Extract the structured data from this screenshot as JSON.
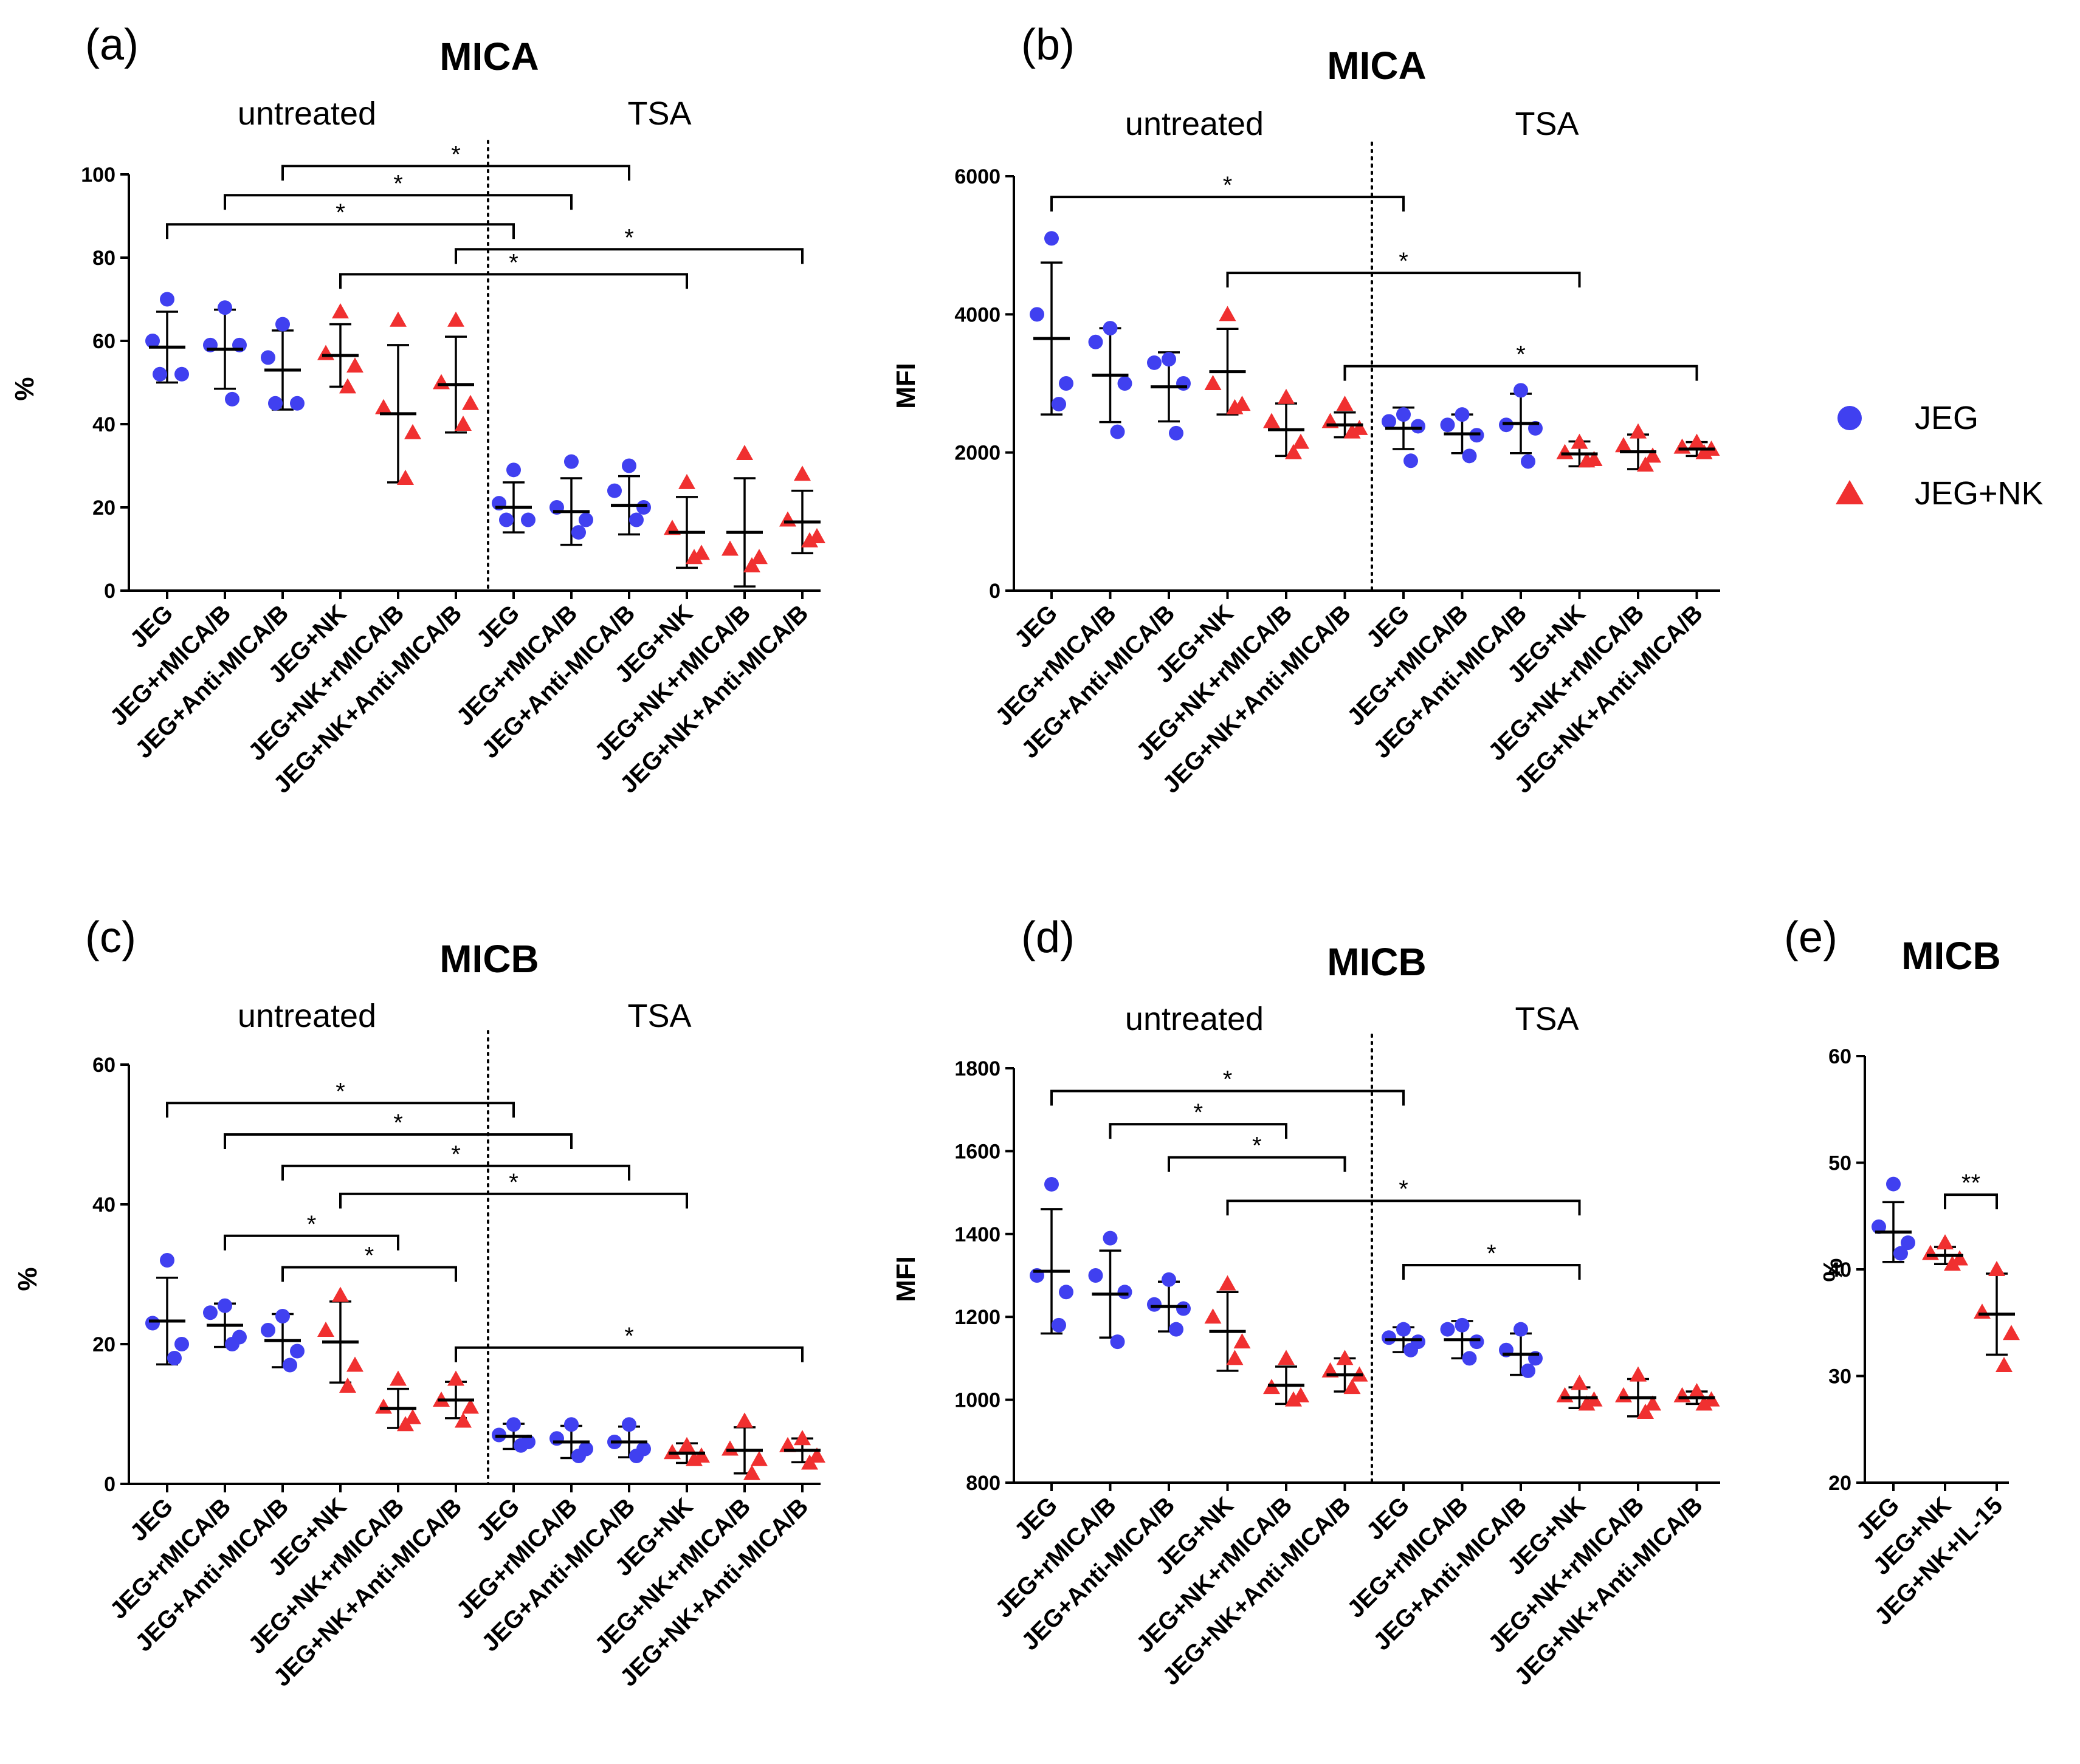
{
  "colors": {
    "jeg": "#4040f0",
    "jeg_nk": "#f03030",
    "axis": "#000000"
  },
  "legend": {
    "items": [
      {
        "label": "JEG",
        "shape": "circle"
      },
      {
        "label": "JEG+NK",
        "shape": "triangle"
      }
    ]
  },
  "chart_data": [
    {
      "id": "a",
      "letter": "(a)",
      "title": "MICA",
      "type": "scatter",
      "ylabel": "%",
      "ylim": [
        0,
        100
      ],
      "yticks": [
        0,
        20,
        40,
        60,
        80,
        100
      ],
      "group_labels": [
        "untreated",
        "TSA"
      ],
      "categories": [
        "JEG",
        "JEG+rMICA/B",
        "JEG+Anti-MICA/B",
        "JEG+NK",
        "JEG+NK+rMICA/B",
        "JEG+NK+Anti-MICA/B",
        "JEG",
        "JEG+rMICA/B",
        "JEG+Anti-MICA/B",
        "JEG+NK",
        "JEG+NK+rMICA/B",
        "JEG+NK+Anti-MICA/B"
      ],
      "series": [
        {
          "name": "JEG",
          "shape": "circle",
          "groups": [
            {
              "cat": 0,
              "points": [
                70,
                60,
                52,
                52
              ],
              "mean": 58.5,
              "sd": 8.5
            },
            {
              "cat": 1,
              "points": [
                68,
                59,
                59,
                46
              ],
              "mean": 58,
              "sd": 9.5
            },
            {
              "cat": 2,
              "points": [
                64,
                56,
                45,
                45
              ],
              "mean": 53,
              "sd": 9.5
            },
            {
              "cat": 6,
              "points": [
                29,
                21,
                17,
                17
              ],
              "mean": 20,
              "sd": 6
            },
            {
              "cat": 7,
              "points": [
                31,
                20,
                17,
                14
              ],
              "mean": 19,
              "sd": 8
            },
            {
              "cat": 8,
              "points": [
                30,
                24,
                20,
                17
              ],
              "mean": 20.5,
              "sd": 7
            }
          ]
        },
        {
          "name": "JEG+NK",
          "shape": "triangle",
          "groups": [
            {
              "cat": 3,
              "points": [
                67,
                57,
                54,
                49
              ],
              "mean": 56.5,
              "sd": 7.5
            },
            {
              "cat": 4,
              "points": [
                65,
                44,
                38,
                27
              ],
              "mean": 42.5,
              "sd": 16.5
            },
            {
              "cat": 5,
              "points": [
                65,
                50,
                45,
                40
              ],
              "mean": 49.5,
              "sd": 11.5
            },
            {
              "cat": 9,
              "points": [
                26,
                15,
                9,
                8
              ],
              "mean": 14,
              "sd": 8.5
            },
            {
              "cat": 10,
              "points": [
                33,
                10,
                8,
                6
              ],
              "mean": 14,
              "sd": 13
            },
            {
              "cat": 11,
              "points": [
                28,
                17,
                13,
                12
              ],
              "mean": 16.5,
              "sd": 7.5
            }
          ]
        }
      ],
      "brackets": [
        {
          "from": 2,
          "to": 8,
          "y": 102,
          "label": "*"
        },
        {
          "from": 1,
          "to": 7,
          "y": 95,
          "label": "*"
        },
        {
          "from": 0,
          "to": 6,
          "y": 88,
          "label": "*"
        },
        {
          "from": 5,
          "to": 11,
          "y": 82,
          "label": "*"
        },
        {
          "from": 3,
          "to": 9,
          "y": 76,
          "label": "*"
        }
      ]
    },
    {
      "id": "b",
      "letter": "(b)",
      "title": "MICA",
      "type": "scatter",
      "ylabel": "MFI",
      "ylim": [
        0,
        6000
      ],
      "yticks": [
        0,
        2000,
        4000,
        6000
      ],
      "group_labels": [
        "untreated",
        "TSA"
      ],
      "categories": [
        "JEG",
        "JEG+rMICA/B",
        "JEG+Anti-MICA/B",
        "JEG+NK",
        "JEG+NK+rMICA/B",
        "JEG+NK+Anti-MICA/B",
        "JEG",
        "JEG+rMICA/B",
        "JEG+Anti-MICA/B",
        "JEG+NK",
        "JEG+NK+rMICA/B",
        "JEG+NK+Anti-MICA/B"
      ],
      "series": [
        {
          "name": "JEG",
          "shape": "circle",
          "groups": [
            {
              "cat": 0,
              "points": [
                5100,
                4000,
                3000,
                2700
              ],
              "mean": 3650,
              "sd": 1100
            },
            {
              "cat": 1,
              "points": [
                3800,
                3600,
                3000,
                2300
              ],
              "mean": 3120,
              "sd": 680
            },
            {
              "cat": 2,
              "points": [
                3350,
                3300,
                3000,
                2280
              ],
              "mean": 2950,
              "sd": 500
            },
            {
              "cat": 6,
              "points": [
                2550,
                2450,
                2380,
                1880
              ],
              "mean": 2350,
              "sd": 300
            },
            {
              "cat": 7,
              "points": [
                2550,
                2400,
                2250,
                1950
              ],
              "mean": 2270,
              "sd": 280
            },
            {
              "cat": 8,
              "points": [
                2900,
                2400,
                2350,
                1870
              ],
              "mean": 2420,
              "sd": 430
            }
          ]
        },
        {
          "name": "JEG+NK",
          "shape": "triangle",
          "groups": [
            {
              "cat": 3,
              "points": [
                4000,
                3000,
                2700,
                2650
              ],
              "mean": 3170,
              "sd": 620
            },
            {
              "cat": 4,
              "points": [
                2800,
                2450,
                2150,
                2000
              ],
              "mean": 2330,
              "sd": 380
            },
            {
              "cat": 5,
              "points": [
                2700,
                2450,
                2350,
                2300
              ],
              "mean": 2400,
              "sd": 180
            },
            {
              "cat": 9,
              "points": [
                2150,
                2000,
                1900,
                1880
              ],
              "mean": 1980,
              "sd": 180
            },
            {
              "cat": 10,
              "points": [
                2300,
                2100,
                1950,
                1820
              ],
              "mean": 2010,
              "sd": 250
            },
            {
              "cat": 11,
              "points": [
                2150,
                2080,
                2050,
                2000
              ],
              "mean": 2050,
              "sd": 100
            }
          ]
        }
      ],
      "brackets": [
        {
          "from": 0,
          "to": 6,
          "y": 5700,
          "label": "*"
        },
        {
          "from": 3,
          "to": 9,
          "y": 4600,
          "label": "*"
        },
        {
          "from": 5,
          "to": 11,
          "y": 3250,
          "label": "*"
        }
      ]
    },
    {
      "id": "c",
      "letter": "(c)",
      "title": "MICB",
      "type": "scatter",
      "ylabel": "%",
      "ylim": [
        0,
        60
      ],
      "yticks": [
        0,
        20,
        40,
        60
      ],
      "group_labels": [
        "untreated",
        "TSA"
      ],
      "categories": [
        "JEG",
        "JEG+rMICA/B",
        "JEG+Anti-MICA/B",
        "JEG+NK",
        "JEG+NK+rMICA/B",
        "JEG+NK+Anti-MICA/B",
        "JEG",
        "JEG+rMICA/B",
        "JEG+Anti-MICA/B",
        "JEG+NK",
        "JEG+NK+rMICA/B",
        "JEG+NK+Anti-MICA/B"
      ],
      "series": [
        {
          "name": "JEG",
          "shape": "circle",
          "groups": [
            {
              "cat": 0,
              "points": [
                32,
                23,
                20,
                18
              ],
              "mean": 23.3,
              "sd": 6.2
            },
            {
              "cat": 1,
              "points": [
                25.5,
                24.5,
                21,
                20
              ],
              "mean": 22.7,
              "sd": 3.1
            },
            {
              "cat": 2,
              "points": [
                24,
                22,
                19,
                17
              ],
              "mean": 20.5,
              "sd": 3.8
            },
            {
              "cat": 6,
              "points": [
                8.5,
                7,
                6,
                5.5
              ],
              "mean": 6.8,
              "sd": 1.8
            },
            {
              "cat": 7,
              "points": [
                8.5,
                6.5,
                5,
                4
              ],
              "mean": 6,
              "sd": 2.3
            },
            {
              "cat": 8,
              "points": [
                8.5,
                6,
                5,
                4
              ],
              "mean": 6,
              "sd": 2.2
            }
          ]
        },
        {
          "name": "JEG+NK",
          "shape": "triangle",
          "groups": [
            {
              "cat": 3,
              "points": [
                27,
                22,
                17,
                14
              ],
              "mean": 20.3,
              "sd": 5.8
            },
            {
              "cat": 4,
              "points": [
                15,
                11,
                9.5,
                8.5
              ],
              "mean": 10.8,
              "sd": 2.8
            },
            {
              "cat": 5,
              "points": [
                15,
                12,
                11,
                9
              ],
              "mean": 12,
              "sd": 2.6
            },
            {
              "cat": 9,
              "points": [
                5.5,
                4.5,
                4,
                3.5
              ],
              "mean": 4.4,
              "sd": 1.4
            },
            {
              "cat": 10,
              "points": [
                9,
                5,
                3.5,
                1.5
              ],
              "mean": 4.8,
              "sd": 3.3
            },
            {
              "cat": 11,
              "points": [
                6.5,
                5.5,
                4,
                3
              ],
              "mean": 4.8,
              "sd": 1.7
            }
          ]
        }
      ],
      "brackets": [
        {
          "from": 0,
          "to": 6,
          "y": 54.5,
          "label": "*"
        },
        {
          "from": 1,
          "to": 7,
          "y": 50,
          "label": "*"
        },
        {
          "from": 2,
          "to": 8,
          "y": 45.5,
          "label": "*"
        },
        {
          "from": 3,
          "to": 9,
          "y": 41.5,
          "label": "*"
        },
        {
          "from": 1,
          "to": 4,
          "y": 35.5,
          "label": "*"
        },
        {
          "from": 2,
          "to": 5,
          "y": 31,
          "label": "*"
        },
        {
          "from": 5,
          "to": 11,
          "y": 19.5,
          "label": "*"
        }
      ]
    },
    {
      "id": "d",
      "letter": "(d)",
      "title": "MICB",
      "type": "scatter",
      "ylabel": "MFI",
      "ylim": [
        800,
        1800
      ],
      "yticks": [
        800,
        1000,
        1200,
        1400,
        1600,
        1800
      ],
      "group_labels": [
        "untreated",
        "TSA"
      ],
      "categories": [
        "JEG",
        "JEG+rMICA/B",
        "JEG+Anti-MICA/B",
        "JEG+NK",
        "JEG+NK+rMICA/B",
        "JEG+NK+Anti-MICA/B",
        "JEG",
        "JEG+rMICA/B",
        "JEG+Anti-MICA/B",
        "JEG+NK",
        "JEG+NK+rMICA/B",
        "JEG+NK+Anti-MICA/B"
      ],
      "series": [
        {
          "name": "JEG",
          "shape": "circle",
          "groups": [
            {
              "cat": 0,
              "points": [
                1520,
                1300,
                1260,
                1180
              ],
              "mean": 1310,
              "sd": 150
            },
            {
              "cat": 1,
              "points": [
                1390,
                1300,
                1260,
                1140
              ],
              "mean": 1255,
              "sd": 105
            },
            {
              "cat": 2,
              "points": [
                1290,
                1230,
                1220,
                1170
              ],
              "mean": 1225,
              "sd": 60
            },
            {
              "cat": 6,
              "points": [
                1170,
                1150,
                1140,
                1120
              ],
              "mean": 1145,
              "sd": 30
            },
            {
              "cat": 7,
              "points": [
                1180,
                1170,
                1140,
                1100
              ],
              "mean": 1145,
              "sd": 45
            },
            {
              "cat": 8,
              "points": [
                1170,
                1120,
                1100,
                1070
              ],
              "mean": 1110,
              "sd": 50
            }
          ]
        },
        {
          "name": "JEG+NK",
          "shape": "triangle",
          "groups": [
            {
              "cat": 3,
              "points": [
                1280,
                1200,
                1140,
                1100
              ],
              "mean": 1165,
              "sd": 95
            },
            {
              "cat": 4,
              "points": [
                1100,
                1030,
                1010,
                1000
              ],
              "mean": 1035,
              "sd": 45
            },
            {
              "cat": 5,
              "points": [
                1100,
                1070,
                1060,
                1030
              ],
              "mean": 1060,
              "sd": 40
            },
            {
              "cat": 9,
              "points": [
                1040,
                1010,
                1000,
                990
              ],
              "mean": 1005,
              "sd": 25
            },
            {
              "cat": 10,
              "points": [
                1060,
                1010,
                990,
                970
              ],
              "mean": 1005,
              "sd": 45
            },
            {
              "cat": 11,
              "points": [
                1020,
                1010,
                1000,
                990
              ],
              "mean": 1005,
              "sd": 15
            }
          ]
        }
      ],
      "brackets": [
        {
          "from": 0,
          "to": 6,
          "y": 1745,
          "label": "*"
        },
        {
          "from": 1,
          "to": 4,
          "y": 1665,
          "label": "*"
        },
        {
          "from": 2,
          "to": 5,
          "y": 1585,
          "label": "*"
        },
        {
          "from": 3,
          "to": 9,
          "y": 1480,
          "label": "*"
        },
        {
          "from": 6,
          "to": 9,
          "y": 1325,
          "label": "*"
        }
      ]
    },
    {
      "id": "e",
      "letter": "(e)",
      "title": "MICB",
      "type": "scatter",
      "ylabel": "%",
      "ylim": [
        20,
        60
      ],
      "yticks": [
        20,
        30,
        40,
        50,
        60
      ],
      "group_labels": [],
      "categories": [
        "JEG",
        "JEG+NK",
        "JEG+NK+IL-15"
      ],
      "series": [
        {
          "name": "JEG",
          "shape": "circle",
          "groups": [
            {
              "cat": 0,
              "points": [
                48,
                44,
                42.5,
                41.5
              ],
              "mean": 43.5,
              "sd": 2.8
            }
          ]
        },
        {
          "name": "JEG+NK",
          "shape": "triangle",
          "groups": [
            {
              "cat": 1,
              "points": [
                42.5,
                41.5,
                41,
                40.5
              ],
              "mean": 41.3,
              "sd": 0.8
            },
            {
              "cat": 2,
              "points": [
                40,
                36,
                34,
                31
              ],
              "mean": 35.8,
              "sd": 3.8
            }
          ]
        }
      ],
      "brackets": [
        {
          "from": 1,
          "to": 2,
          "y": 47,
          "label": "**"
        }
      ]
    }
  ]
}
